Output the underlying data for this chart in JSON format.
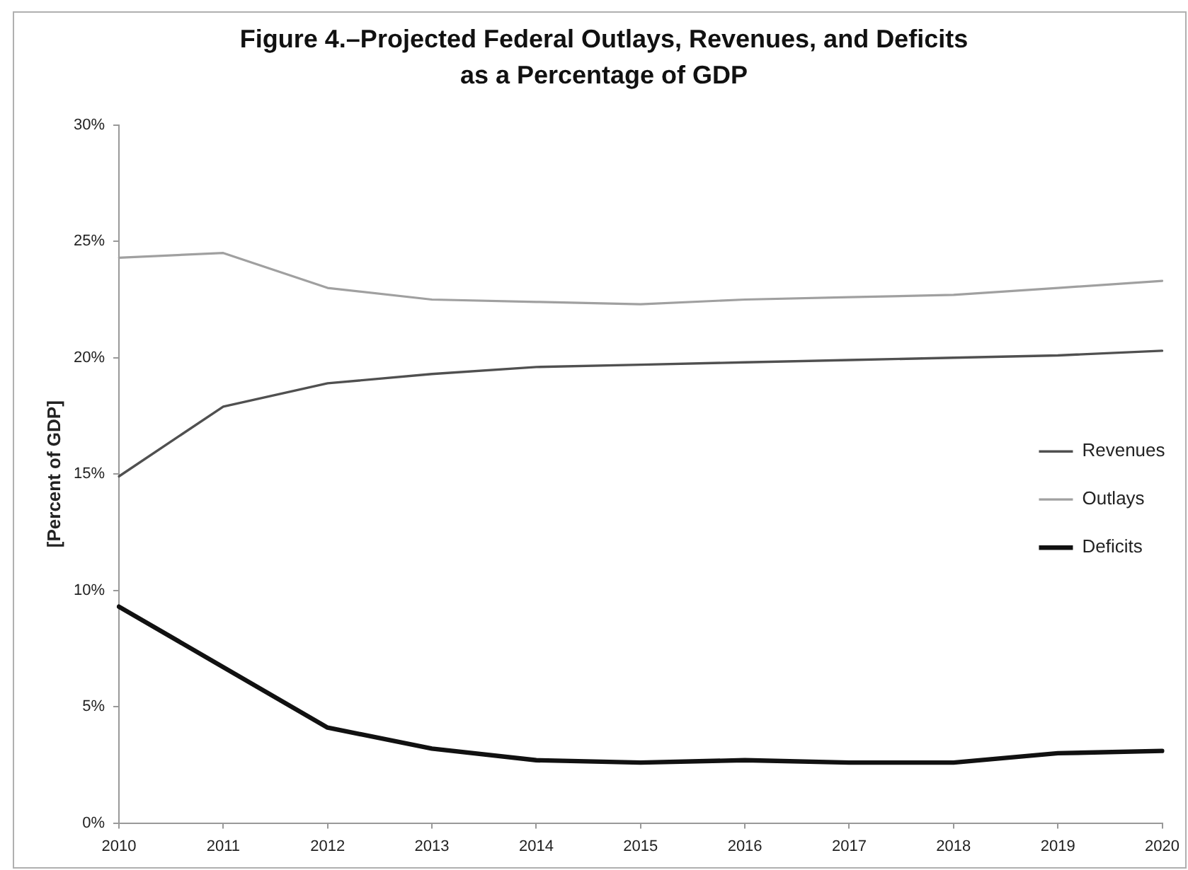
{
  "chart_data": {
    "type": "line",
    "title": "Figure 4.–Projected Federal Outlays, Revenues, and Deficits as a Percentage of GDP",
    "ylabel": "[Percent of GDP]",
    "categories": [
      "2010",
      "2011",
      "2012",
      "2013",
      "2014",
      "2015",
      "2016",
      "2017",
      "2018",
      "2019",
      "2020"
    ],
    "series": [
      {
        "name": "Revenues",
        "color": "#505050",
        "values": [
          14.9,
          17.9,
          18.9,
          19.3,
          19.6,
          19.7,
          19.8,
          19.9,
          20.0,
          20.1,
          20.3
        ]
      },
      {
        "name": "Outlays",
        "color": "#a0a0a0",
        "values": [
          24.3,
          24.5,
          23.0,
          22.5,
          22.4,
          22.3,
          22.5,
          22.6,
          22.7,
          23.0,
          23.3
        ]
      },
      {
        "name": "Deficits",
        "color": "#111111",
        "values": [
          9.3,
          6.7,
          4.1,
          3.2,
          2.7,
          2.6,
          2.7,
          2.6,
          2.6,
          3.0,
          3.1
        ]
      }
    ],
    "ylim": [
      0,
      30
    ],
    "yticks": [
      {
        "value": 0,
        "label": "0%"
      },
      {
        "value": 5,
        "label": "5%"
      },
      {
        "value": 10,
        "label": "10%"
      },
      {
        "value": 15,
        "label": "15%"
      },
      {
        "value": 20,
        "label": "20%"
      },
      {
        "value": 25,
        "label": "25%"
      },
      {
        "value": 30,
        "label": "30%"
      }
    ],
    "grid": false,
    "legend": "right"
  }
}
